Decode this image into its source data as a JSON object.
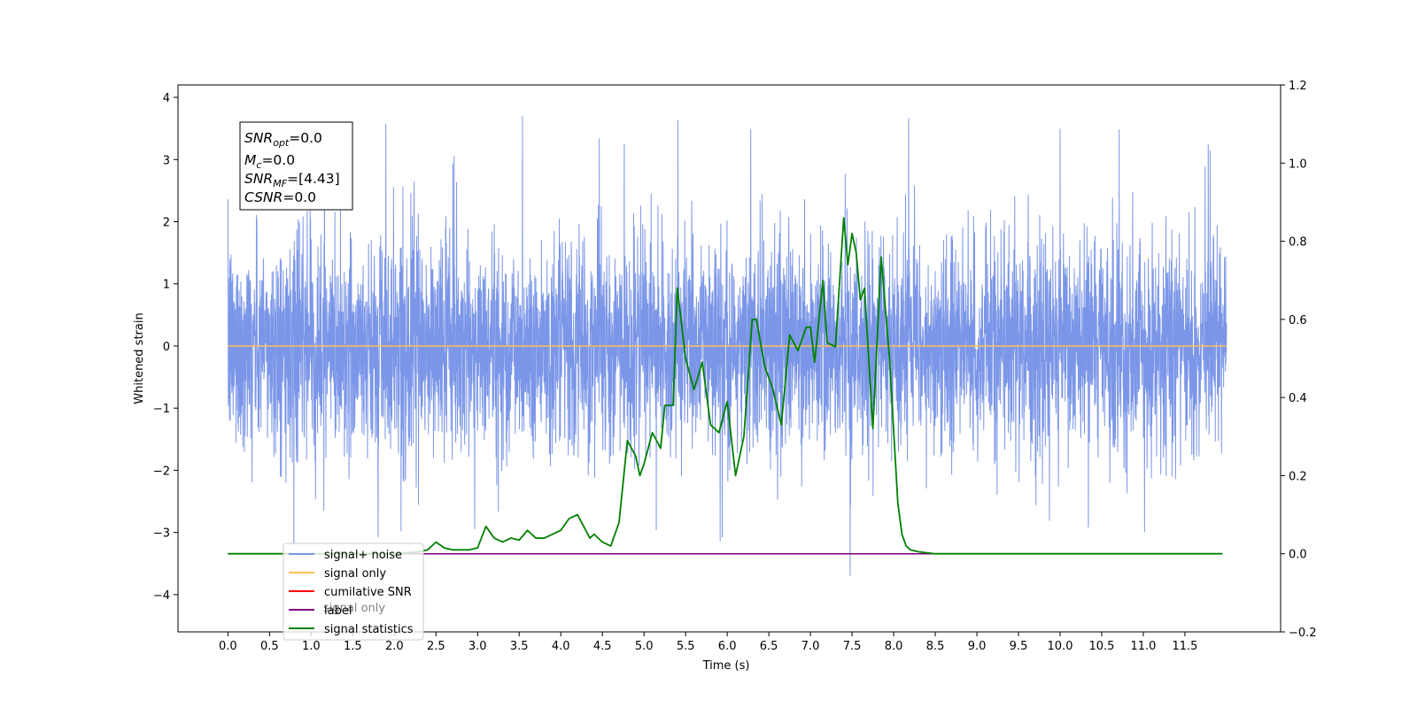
{
  "chart_data": {
    "type": "line",
    "xlabel": "Time (s)",
    "ylabel": "Whitened strain",
    "xlim": [
      -0.6,
      12.65
    ],
    "ylim": [
      -4.6,
      4.2
    ],
    "y2lim": [
      -0.2,
      1.2
    ],
    "x_ticks": [
      "0.0",
      "0.5",
      "1.0",
      "1.5",
      "2.0",
      "2.5",
      "3.0",
      "3.5",
      "4.0",
      "4.5",
      "5.0",
      "5.5",
      "6.0",
      "6.5",
      "7.0",
      "7.5",
      "8.0",
      "8.5",
      "9.0",
      "9.5",
      "10.0",
      "10.5",
      "11.0",
      "11.5"
    ],
    "y_ticks": [
      "4",
      "3",
      "2",
      "1",
      "0",
      "−1",
      "−2",
      "−3",
      "−4"
    ],
    "y2_ticks": [
      "1.2",
      "1.0",
      "0.8",
      "0.6",
      "0.4",
      "0.2",
      "0.0",
      "−0.2"
    ],
    "annotation": {
      "lines": [
        {
          "var": "SNR",
          "sub": "opt",
          "value": "=0.0"
        },
        {
          "var": "M",
          "sub": "c",
          "value": "=0.0"
        },
        {
          "var": "SNR",
          "sub": "MF",
          "value": "=[4.43]"
        },
        {
          "var": "CSNR",
          "sub": "",
          "value": "=0.0"
        }
      ]
    },
    "legend": {
      "placement": "lower-left",
      "entries": [
        {
          "label": "signal+ noise",
          "color": "#7b96e8"
        },
        {
          "label": "signal only",
          "color": "#ffbe59"
        },
        {
          "label": "cumilative SNR",
          "color": "#ff0000"
        },
        {
          "label": "label",
          "color": "#800080"
        },
        {
          "label": "signal statistics",
          "color": "#008000"
        }
      ],
      "hidden_label_text": "signal only"
    },
    "series": [
      {
        "name": "signal+ noise",
        "axis": "left",
        "color": "#7b96e8",
        "x_range": [
          0.0,
          12.0
        ],
        "noise_std": 0.85,
        "noise_peak_max": 3.8,
        "noise_peak_min": -4.1
      },
      {
        "name": "signal only",
        "axis": "left",
        "color": "#ffbe59",
        "x": [
          0.0,
          12.0
        ],
        "y": [
          0.0,
          0.0
        ]
      },
      {
        "name": "label",
        "axis": "right",
        "color": "#800080",
        "x": [
          0.0,
          11.95
        ],
        "y": [
          0.0,
          0.0
        ]
      },
      {
        "name": "signal statistics",
        "axis": "right",
        "color": "#008000",
        "x": [
          0.0,
          2.0,
          2.3,
          2.4,
          2.5,
          2.6,
          2.7,
          2.9,
          3.0,
          3.1,
          3.2,
          3.3,
          3.4,
          3.5,
          3.6,
          3.7,
          3.8,
          3.9,
          4.0,
          4.1,
          4.2,
          4.3,
          4.35,
          4.4,
          4.5,
          4.6,
          4.7,
          4.8,
          4.9,
          4.95,
          5.0,
          5.1,
          5.2,
          5.25,
          5.3,
          5.35,
          5.4,
          5.5,
          5.6,
          5.7,
          5.8,
          5.9,
          6.0,
          6.1,
          6.2,
          6.3,
          6.35,
          6.45,
          6.55,
          6.65,
          6.75,
          6.85,
          6.95,
          7.0,
          7.05,
          7.15,
          7.2,
          7.3,
          7.4,
          7.45,
          7.5,
          7.55,
          7.6,
          7.65,
          7.75,
          7.85,
          7.95,
          8.05,
          8.1,
          8.15,
          8.2,
          8.3,
          8.5,
          9.0,
          10.0,
          11.0,
          11.95
        ],
        "y": [
          0.0,
          0.0,
          0.005,
          0.01,
          0.03,
          0.015,
          0.01,
          0.01,
          0.015,
          0.07,
          0.04,
          0.03,
          0.04,
          0.035,
          0.06,
          0.04,
          0.04,
          0.05,
          0.06,
          0.09,
          0.1,
          0.06,
          0.04,
          0.05,
          0.03,
          0.02,
          0.08,
          0.29,
          0.25,
          0.2,
          0.23,
          0.31,
          0.27,
          0.38,
          0.38,
          0.38,
          0.68,
          0.5,
          0.42,
          0.49,
          0.33,
          0.31,
          0.39,
          0.2,
          0.3,
          0.6,
          0.6,
          0.48,
          0.42,
          0.33,
          0.56,
          0.52,
          0.58,
          0.58,
          0.49,
          0.7,
          0.54,
          0.53,
          0.86,
          0.74,
          0.82,
          0.77,
          0.65,
          0.68,
          0.32,
          0.76,
          0.5,
          0.13,
          0.05,
          0.02,
          0.01,
          0.005,
          0.0,
          0.0,
          0.0,
          0.0,
          0.0
        ]
      }
    ]
  }
}
